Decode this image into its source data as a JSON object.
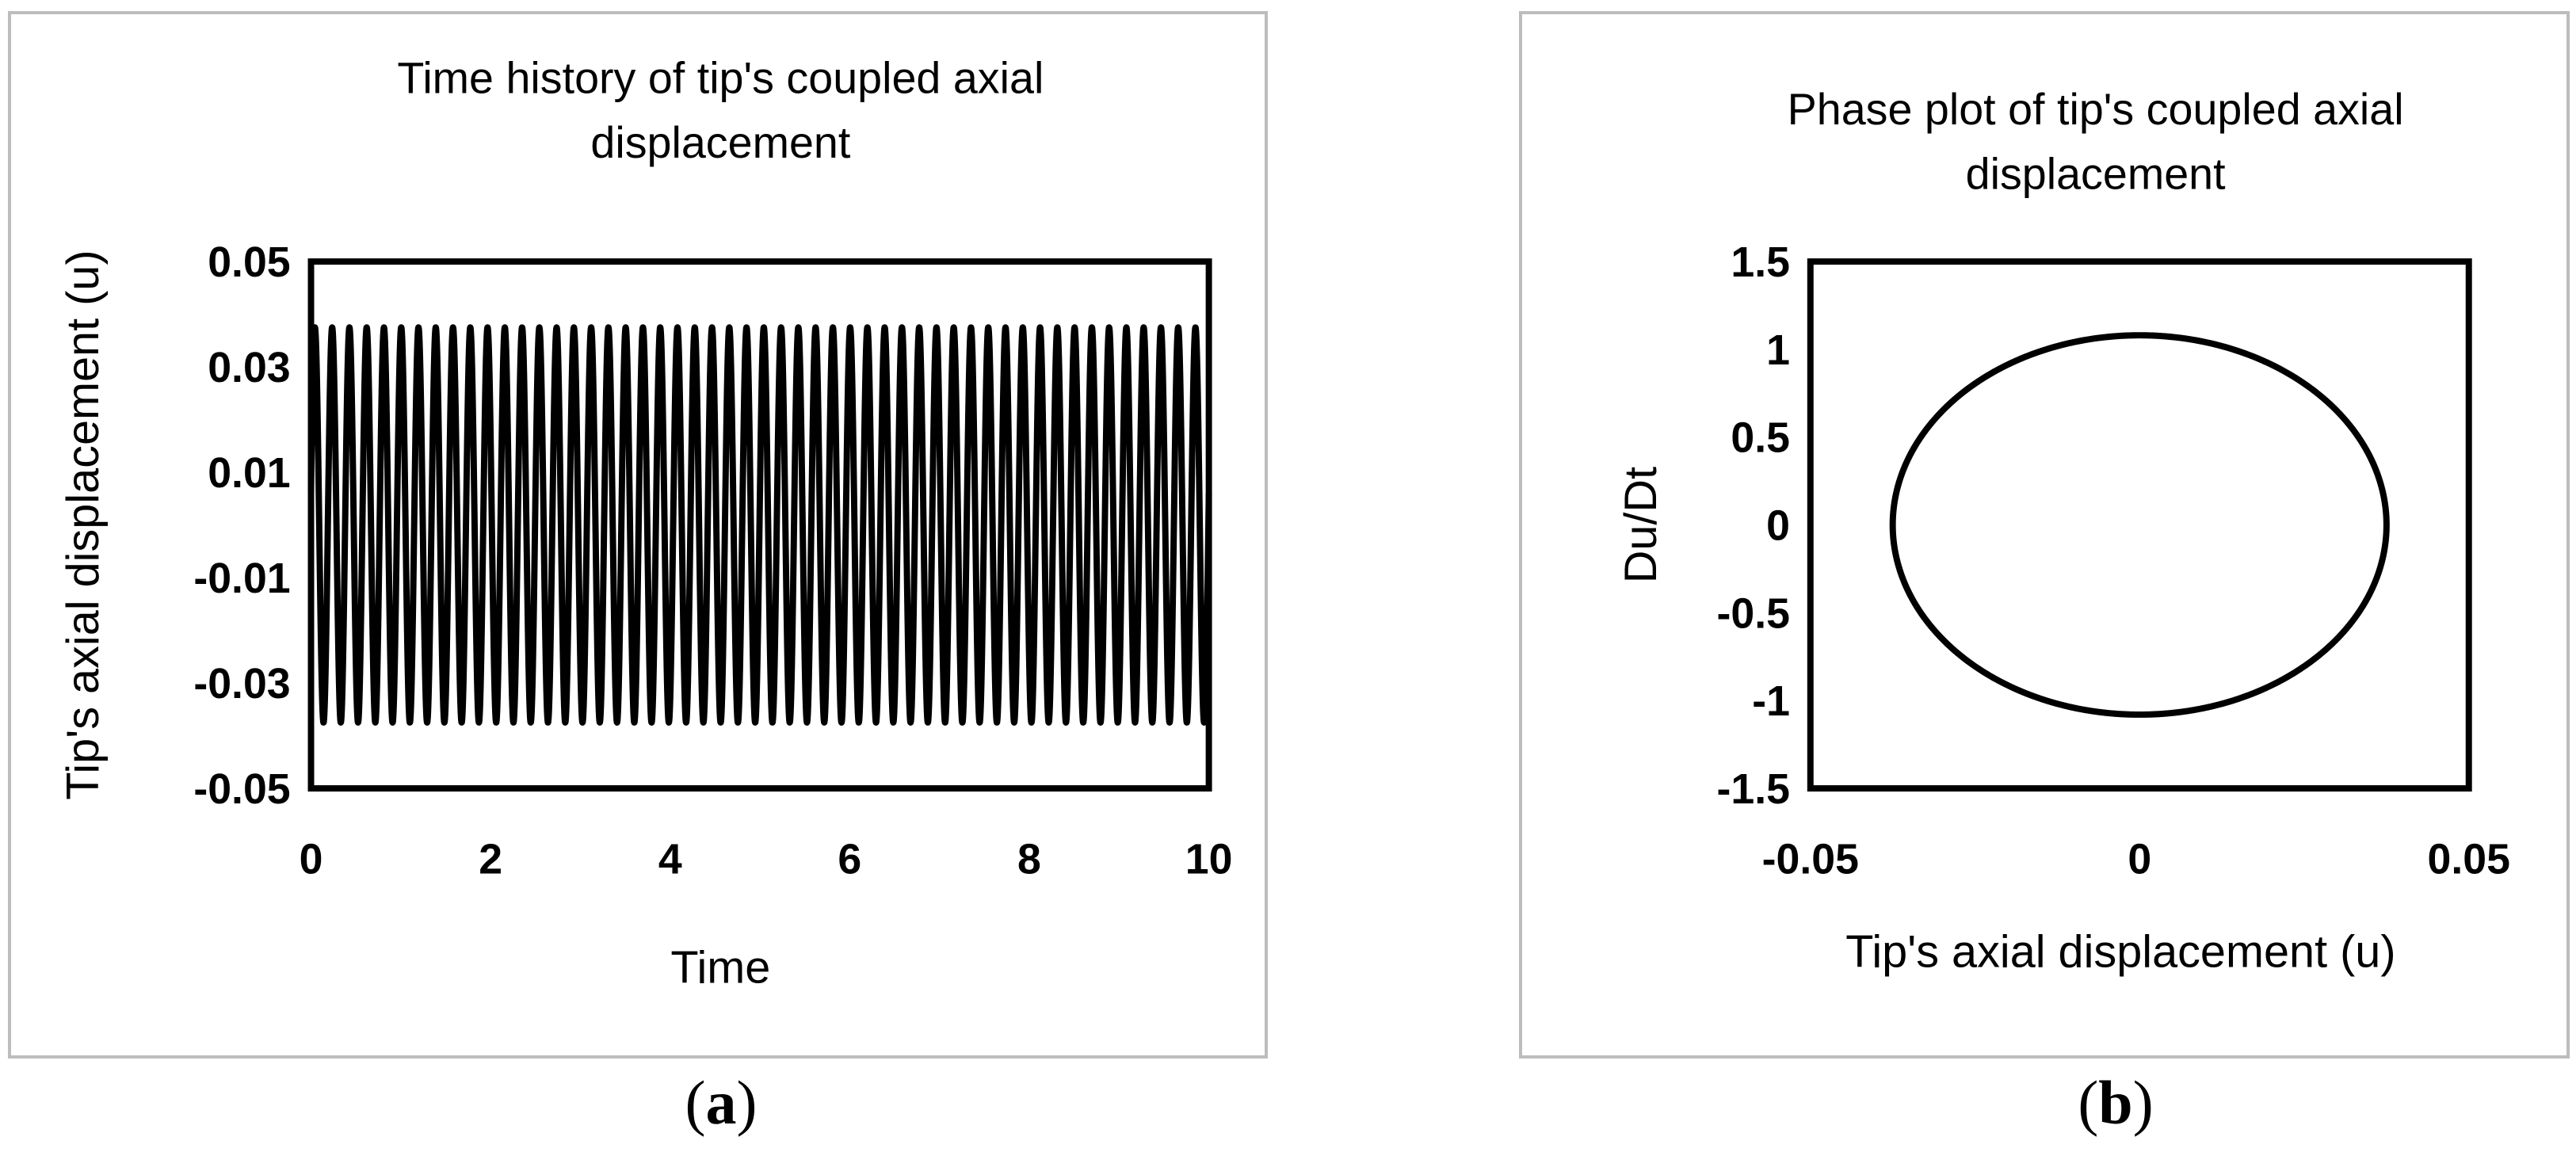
{
  "chart_data": [
    {
      "id": "a",
      "type": "line",
      "title_lines": [
        "Time history of tip's coupled axial",
        "displacement"
      ],
      "xlabel": "Time",
      "ylabel": "Tip's axial displacement (u)",
      "xlim": [
        0,
        10
      ],
      "ylim": [
        -0.05,
        0.05
      ],
      "x_ticks": [
        "0",
        "2",
        "4",
        "6",
        "8",
        "10"
      ],
      "y_ticks": [
        "0.05",
        "0.03",
        "0.01",
        "-0.01",
        "-0.03",
        "-0.05"
      ],
      "grid": false,
      "legend": "none",
      "series": [
        {
          "values_summary": "sinusoid",
          "amplitude": 0.0375,
          "cycles": 52,
          "initial_value": 0.006,
          "x_start": 0,
          "x_end": 10
        }
      ]
    },
    {
      "id": "b",
      "type": "line",
      "title_lines": [
        "Phase plot of tip's coupled axial",
        "displacement"
      ],
      "xlabel": "Tip's axial displacement (u)",
      "ylabel": "Du/Dt",
      "xlim": [
        -0.05,
        0.05
      ],
      "ylim": [
        -1.5,
        1.5
      ],
      "x_ticks": [
        "-0.05",
        "0",
        "0.05"
      ],
      "y_ticks": [
        "1.5",
        "1",
        "0.5",
        "0",
        "-0.5",
        "-1",
        "-1.5"
      ],
      "grid": false,
      "legend": "none",
      "series": [
        {
          "shape": "closed ellipse",
          "center": [
            0,
            0
          ],
          "x_amplitude": 0.0375,
          "y_amplitude": 1.08
        }
      ]
    }
  ],
  "captions": [
    "a",
    "b"
  ]
}
